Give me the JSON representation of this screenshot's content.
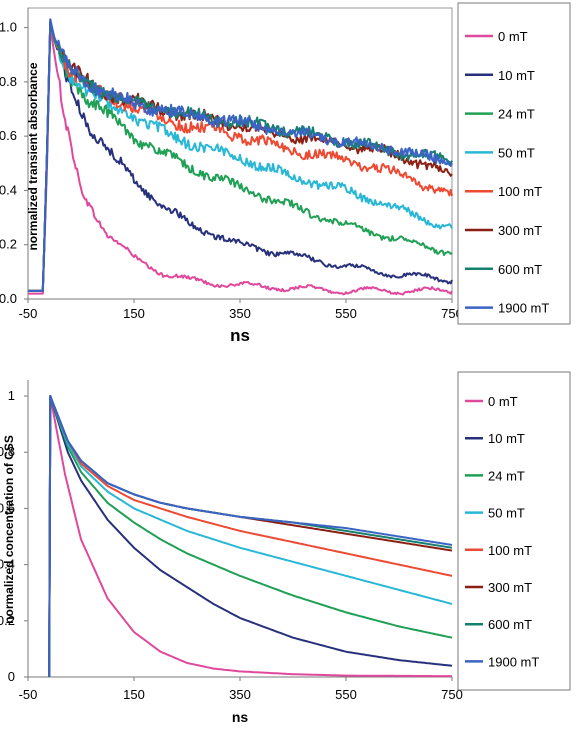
{
  "chart_data": [
    {
      "type": "line",
      "title": "",
      "xlabel": "ns",
      "ylabel": "normalized transient absorbance",
      "xlim": [
        -50,
        750
      ],
      "ylim": [
        0,
        1.05
      ],
      "xticks": [
        "-50",
        "150",
        "350",
        "550",
        "750"
      ],
      "yticks": [
        "0.0",
        "0.2",
        "0.4",
        "0.6",
        "0.8",
        "1.0"
      ],
      "grid": false,
      "legend": "right, boxed",
      "noisy": true,
      "series": [
        {
          "name": "0 mT",
          "color": "#e0489c",
          "points": [
            [
              -50,
              0.02
            ],
            [
              -22,
              0.02
            ],
            [
              -14,
              0.5
            ],
            [
              -8,
              1.0
            ],
            [
              0,
              0.9
            ],
            [
              20,
              0.65
            ],
            [
              50,
              0.4
            ],
            [
              100,
              0.24
            ],
            [
              150,
              0.15
            ],
            [
              200,
              0.1
            ],
            [
              250,
              0.07
            ],
            [
              350,
              0.05
            ],
            [
              450,
              0.04
            ],
            [
              550,
              0.03
            ],
            [
              650,
              0.03
            ],
            [
              750,
              0.03
            ]
          ]
        },
        {
          "name": "10 mT",
          "color": "#27307b",
          "points": [
            [
              -50,
              0.03
            ],
            [
              -22,
              0.03
            ],
            [
              -14,
              0.55
            ],
            [
              -8,
              1.03
            ],
            [
              0,
              0.95
            ],
            [
              25,
              0.8
            ],
            [
              60,
              0.65
            ],
            [
              100,
              0.55
            ],
            [
              150,
              0.44
            ],
            [
              200,
              0.35
            ],
            [
              250,
              0.28
            ],
            [
              300,
              0.24
            ],
            [
              350,
              0.2
            ],
            [
              450,
              0.16
            ],
            [
              550,
              0.12
            ],
            [
              650,
              0.09
            ],
            [
              750,
              0.07
            ]
          ]
        },
        {
          "name": "24 mT",
          "color": "#1fa055",
          "points": [
            [
              -50,
              0.03
            ],
            [
              -22,
              0.03
            ],
            [
              -14,
              0.55
            ],
            [
              -8,
              1.02
            ],
            [
              0,
              0.95
            ],
            [
              25,
              0.83
            ],
            [
              60,
              0.74
            ],
            [
              100,
              0.68
            ],
            [
              150,
              0.6
            ],
            [
              200,
              0.54
            ],
            [
              250,
              0.49
            ],
            [
              350,
              0.41
            ],
            [
              450,
              0.34
            ],
            [
              550,
              0.27
            ],
            [
              650,
              0.22
            ],
            [
              750,
              0.17
            ]
          ]
        },
        {
          "name": "50 mT",
          "color": "#29b7d6",
          "points": [
            [
              -50,
              0.03
            ],
            [
              -22,
              0.03
            ],
            [
              -14,
              0.55
            ],
            [
              -8,
              1.02
            ],
            [
              0,
              0.96
            ],
            [
              25,
              0.84
            ],
            [
              60,
              0.77
            ],
            [
              100,
              0.72
            ],
            [
              150,
              0.67
            ],
            [
              200,
              0.62
            ],
            [
              250,
              0.58
            ],
            [
              350,
              0.52
            ],
            [
              450,
              0.45
            ],
            [
              550,
              0.4
            ],
            [
              650,
              0.33
            ],
            [
              750,
              0.26
            ]
          ]
        },
        {
          "name": "100 mT",
          "color": "#ec4a33",
          "points": [
            [
              -50,
              0.03
            ],
            [
              -22,
              0.03
            ],
            [
              -14,
              0.55
            ],
            [
              -8,
              1.02
            ],
            [
              0,
              0.96
            ],
            [
              25,
              0.85
            ],
            [
              60,
              0.79
            ],
            [
              100,
              0.75
            ],
            [
              150,
              0.71
            ],
            [
              200,
              0.67
            ],
            [
              250,
              0.64
            ],
            [
              350,
              0.6
            ],
            [
              450,
              0.55
            ],
            [
              550,
              0.51
            ],
            [
              650,
              0.46
            ],
            [
              750,
              0.38
            ]
          ]
        },
        {
          "name": "300 mT",
          "color": "#8b1f14",
          "points": [
            [
              -50,
              0.03
            ],
            [
              -22,
              0.03
            ],
            [
              -14,
              0.55
            ],
            [
              -8,
              1.02
            ],
            [
              0,
              0.96
            ],
            [
              25,
              0.86
            ],
            [
              60,
              0.8
            ],
            [
              100,
              0.76
            ],
            [
              150,
              0.73
            ],
            [
              200,
              0.7
            ],
            [
              250,
              0.68
            ],
            [
              350,
              0.64
            ],
            [
              450,
              0.6
            ],
            [
              550,
              0.57
            ],
            [
              650,
              0.53
            ],
            [
              750,
              0.46
            ]
          ]
        },
        {
          "name": "600 mT",
          "color": "#16806e",
          "points": [
            [
              -50,
              0.03
            ],
            [
              -22,
              0.03
            ],
            [
              -14,
              0.55
            ],
            [
              -8,
              1.02
            ],
            [
              0,
              0.96
            ],
            [
              25,
              0.86
            ],
            [
              60,
              0.8
            ],
            [
              100,
              0.76
            ],
            [
              150,
              0.72
            ],
            [
              200,
              0.7
            ],
            [
              250,
              0.68
            ],
            [
              350,
              0.65
            ],
            [
              450,
              0.62
            ],
            [
              550,
              0.58
            ],
            [
              650,
              0.54
            ],
            [
              750,
              0.51
            ]
          ]
        },
        {
          "name": "1900 mT",
          "color": "#3a63c4",
          "points": [
            [
              -50,
              0.03
            ],
            [
              -22,
              0.03
            ],
            [
              -14,
              0.55
            ],
            [
              -8,
              1.03
            ],
            [
              0,
              0.96
            ],
            [
              25,
              0.86
            ],
            [
              60,
              0.8
            ],
            [
              100,
              0.76
            ],
            [
              150,
              0.72
            ],
            [
              200,
              0.7
            ],
            [
              250,
              0.68
            ],
            [
              350,
              0.65
            ],
            [
              450,
              0.61
            ],
            [
              550,
              0.58
            ],
            [
              650,
              0.55
            ],
            [
              750,
              0.5
            ]
          ]
        }
      ]
    },
    {
      "type": "line",
      "title": "",
      "xlabel": "ns",
      "ylabel": "normalized concentration of CSS",
      "xlim": [
        -50,
        750
      ],
      "ylim": [
        0,
        1.05
      ],
      "xticks": [
        "-50",
        "150",
        "350",
        "550",
        "750"
      ],
      "yticks": [
        "0",
        "0.2",
        "0.4",
        "0.6",
        "0.8",
        "1"
      ],
      "grid": false,
      "legend": "right, boxed",
      "noisy": false,
      "series": [
        {
          "name": "0 mT",
          "color": "#e0489c",
          "points": [
            [
              -10,
              0
            ],
            [
              -8,
              1.0
            ],
            [
              20,
              0.72
            ],
            [
              50,
              0.49
            ],
            [
              100,
              0.28
            ],
            [
              150,
              0.16
            ],
            [
              200,
              0.09
            ],
            [
              250,
              0.05
            ],
            [
              300,
              0.03
            ],
            [
              350,
              0.02
            ],
            [
              450,
              0.01
            ],
            [
              550,
              0.005
            ],
            [
              750,
              0.003
            ]
          ]
        },
        {
          "name": "10 mT",
          "color": "#27307b",
          "points": [
            [
              -10,
              0
            ],
            [
              -8,
              1.0
            ],
            [
              25,
              0.8
            ],
            [
              50,
              0.7
            ],
            [
              100,
              0.56
            ],
            [
              150,
              0.46
            ],
            [
              200,
              0.38
            ],
            [
              250,
              0.32
            ],
            [
              300,
              0.26
            ],
            [
              350,
              0.21
            ],
            [
              450,
              0.14
            ],
            [
              550,
              0.09
            ],
            [
              650,
              0.06
            ],
            [
              750,
              0.04
            ]
          ]
        },
        {
          "name": "24 mT",
          "color": "#1fa055",
          "points": [
            [
              -10,
              0
            ],
            [
              -8,
              1.0
            ],
            [
              25,
              0.82
            ],
            [
              50,
              0.73
            ],
            [
              100,
              0.62
            ],
            [
              150,
              0.55
            ],
            [
              200,
              0.49
            ],
            [
              250,
              0.44
            ],
            [
              350,
              0.36
            ],
            [
              450,
              0.29
            ],
            [
              550,
              0.23
            ],
            [
              650,
              0.18
            ],
            [
              750,
              0.14
            ]
          ]
        },
        {
          "name": "50 mT",
          "color": "#29b7d6",
          "points": [
            [
              -10,
              0
            ],
            [
              -8,
              1.0
            ],
            [
              25,
              0.83
            ],
            [
              50,
              0.75
            ],
            [
              100,
              0.66
            ],
            [
              150,
              0.6
            ],
            [
              200,
              0.56
            ],
            [
              250,
              0.52
            ],
            [
              350,
              0.46
            ],
            [
              450,
              0.41
            ],
            [
              550,
              0.36
            ],
            [
              650,
              0.31
            ],
            [
              750,
              0.26
            ]
          ]
        },
        {
          "name": "100 mT",
          "color": "#ec4a33",
          "points": [
            [
              -10,
              0
            ],
            [
              -8,
              1.0
            ],
            [
              25,
              0.84
            ],
            [
              50,
              0.76
            ],
            [
              100,
              0.68
            ],
            [
              150,
              0.63
            ],
            [
              200,
              0.6
            ],
            [
              250,
              0.57
            ],
            [
              350,
              0.52
            ],
            [
              450,
              0.48
            ],
            [
              550,
              0.44
            ],
            [
              650,
              0.4
            ],
            [
              750,
              0.36
            ]
          ]
        },
        {
          "name": "300 mT",
          "color": "#8b1f14",
          "points": [
            [
              -10,
              0
            ],
            [
              -8,
              1.0
            ],
            [
              25,
              0.84
            ],
            [
              50,
              0.77
            ],
            [
              100,
              0.69
            ],
            [
              150,
              0.65
            ],
            [
              200,
              0.62
            ],
            [
              250,
              0.6
            ],
            [
              350,
              0.57
            ],
            [
              450,
              0.54
            ],
            [
              550,
              0.51
            ],
            [
              650,
              0.48
            ],
            [
              750,
              0.45
            ]
          ]
        },
        {
          "name": "600 mT",
          "color": "#16806e",
          "points": [
            [
              -10,
              0
            ],
            [
              -8,
              1.0
            ],
            [
              25,
              0.84
            ],
            [
              50,
              0.77
            ],
            [
              100,
              0.69
            ],
            [
              150,
              0.65
            ],
            [
              200,
              0.62
            ],
            [
              250,
              0.6
            ],
            [
              350,
              0.57
            ],
            [
              450,
              0.55
            ],
            [
              550,
              0.52
            ],
            [
              650,
              0.49
            ],
            [
              750,
              0.46
            ]
          ]
        },
        {
          "name": "1900 mT",
          "color": "#3a63c4",
          "points": [
            [
              -10,
              0
            ],
            [
              -8,
              1.0
            ],
            [
              25,
              0.84
            ],
            [
              50,
              0.77
            ],
            [
              100,
              0.69
            ],
            [
              150,
              0.65
            ],
            [
              200,
              0.62
            ],
            [
              250,
              0.6
            ],
            [
              350,
              0.57
            ],
            [
              450,
              0.55
            ],
            [
              550,
              0.53
            ],
            [
              650,
              0.5
            ],
            [
              750,
              0.47
            ]
          ]
        }
      ]
    }
  ]
}
